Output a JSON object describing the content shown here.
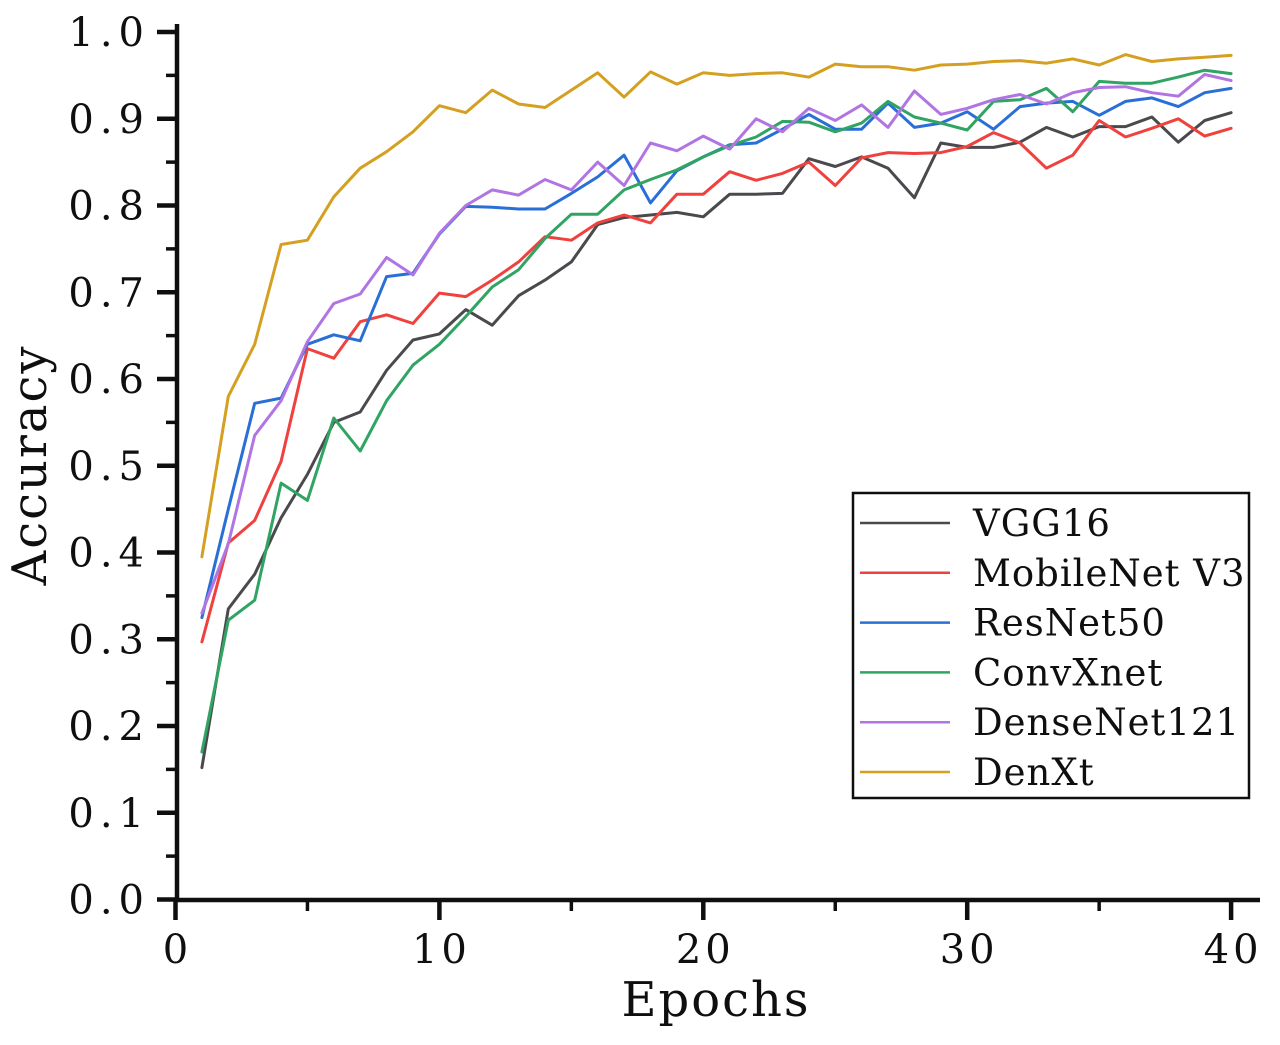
{
  "figure": {
    "background": "#ffffff",
    "axis_color": "#0f0f0f"
  },
  "chart_data": {
    "type": "line",
    "title": "",
    "xlabel": "Epochs",
    "ylabel": "Accuracy",
    "xlim": [
      0,
      40
    ],
    "ylim": [
      0.0,
      1.0
    ],
    "grid": false,
    "legend_position": "inside lower right",
    "x_major_ticks": [
      0,
      10,
      20,
      30,
      40
    ],
    "x_tick_labels": [
      "0",
      "10",
      "20",
      "30",
      "40"
    ],
    "x_minor_ticks": [
      5,
      15,
      25,
      35
    ],
    "y_major_ticks": [
      0.0,
      0.1,
      0.2,
      0.3,
      0.4,
      0.5,
      0.6,
      0.7,
      0.8,
      0.9,
      1.0
    ],
    "y_tick_labels": [
      "0.0",
      "0.1",
      "0.2",
      "0.3",
      "0.4",
      "0.5",
      "0.6",
      "0.7",
      "0.8",
      "0.9",
      "1.0"
    ],
    "y_minor_step": 0.05,
    "x": [
      1,
      2,
      3,
      4,
      5,
      6,
      7,
      8,
      9,
      10,
      11,
      12,
      13,
      14,
      15,
      16,
      17,
      18,
      19,
      20,
      21,
      22,
      23,
      24,
      25,
      26,
      27,
      28,
      29,
      30,
      31,
      32,
      33,
      34,
      35,
      36,
      37,
      38,
      39,
      40
    ],
    "series": [
      {
        "name": "VGG16",
        "color": "#4a4a4e",
        "values": [
          0.152,
          0.335,
          0.375,
          0.44,
          0.49,
          0.55,
          0.562,
          0.61,
          0.645,
          0.652,
          0.68,
          0.662,
          0.696,
          0.714,
          0.735,
          0.778,
          0.786,
          0.789,
          0.792,
          0.787,
          0.813,
          0.813,
          0.814,
          0.854,
          0.845,
          0.856,
          0.843,
          0.809,
          0.872,
          0.867,
          0.867,
          0.873,
          0.89,
          0.879,
          0.891,
          0.891,
          0.902,
          0.873,
          0.898,
          0.907
        ]
      },
      {
        "name": "MobileNet V3",
        "color": "#ef413e",
        "values": [
          0.297,
          0.411,
          0.437,
          0.505,
          0.635,
          0.624,
          0.666,
          0.674,
          0.664,
          0.699,
          0.695,
          0.714,
          0.735,
          0.764,
          0.76,
          0.78,
          0.789,
          0.78,
          0.813,
          0.813,
          0.839,
          0.829,
          0.837,
          0.85,
          0.823,
          0.855,
          0.861,
          0.86,
          0.861,
          0.868,
          0.884,
          0.872,
          0.843,
          0.858,
          0.898,
          0.879,
          0.889,
          0.9,
          0.88,
          0.889
        ]
      },
      {
        "name": "ResNet50",
        "color": "#2a6fd6",
        "values": [
          0.325,
          0.45,
          0.572,
          0.578,
          0.64,
          0.651,
          0.644,
          0.718,
          0.722,
          0.767,
          0.799,
          0.798,
          0.796,
          0.796,
          0.814,
          0.833,
          0.858,
          0.803,
          0.84,
          0.856,
          0.87,
          0.872,
          0.888,
          0.905,
          0.888,
          0.888,
          0.918,
          0.89,
          0.895,
          0.908,
          0.888,
          0.914,
          0.918,
          0.92,
          0.904,
          0.92,
          0.924,
          0.914,
          0.93,
          0.935
        ]
      },
      {
        "name": "ConvXnet",
        "color": "#2fa463",
        "values": [
          0.17,
          0.322,
          0.345,
          0.48,
          0.46,
          0.555,
          0.517,
          0.575,
          0.616,
          0.64,
          0.672,
          0.706,
          0.726,
          0.762,
          0.79,
          0.79,
          0.818,
          0.83,
          0.841,
          0.856,
          0.869,
          0.879,
          0.897,
          0.896,
          0.885,
          0.895,
          0.92,
          0.902,
          0.895,
          0.887,
          0.92,
          0.922,
          0.935,
          0.908,
          0.943,
          0.941,
          0.941,
          0.948,
          0.956,
          0.952
        ]
      },
      {
        "name": "DenseNet121",
        "color": "#b175e3",
        "values": [
          0.33,
          0.41,
          0.535,
          0.575,
          0.643,
          0.687,
          0.698,
          0.74,
          0.72,
          0.768,
          0.8,
          0.818,
          0.812,
          0.83,
          0.818,
          0.85,
          0.823,
          0.872,
          0.863,
          0.88,
          0.865,
          0.9,
          0.885,
          0.912,
          0.898,
          0.916,
          0.89,
          0.932,
          0.905,
          0.912,
          0.922,
          0.928,
          0.917,
          0.93,
          0.936,
          0.937,
          0.93,
          0.926,
          0.951,
          0.944
        ]
      },
      {
        "name": "DenXt",
        "color": "#d5a021",
        "values": [
          0.395,
          0.58,
          0.64,
          0.755,
          0.76,
          0.81,
          0.843,
          0.862,
          0.885,
          0.915,
          0.907,
          0.933,
          0.917,
          0.913,
          0.933,
          0.953,
          0.925,
          0.954,
          0.94,
          0.953,
          0.95,
          0.952,
          0.953,
          0.948,
          0.963,
          0.96,
          0.96,
          0.956,
          0.962,
          0.963,
          0.966,
          0.967,
          0.964,
          0.969,
          0.962,
          0.974,
          0.966,
          0.969,
          0.971,
          0.973
        ]
      }
    ]
  }
}
